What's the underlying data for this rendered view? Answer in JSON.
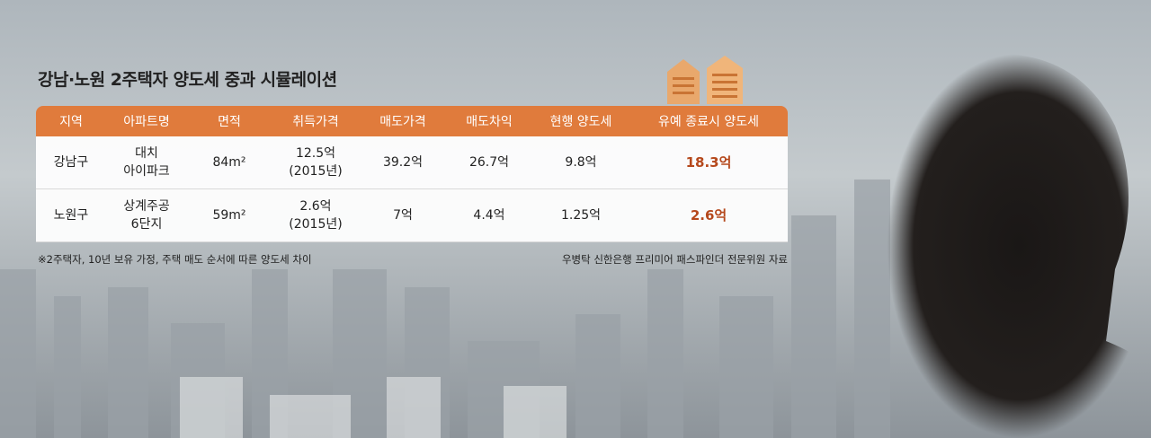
{
  "header": {
    "title": "강남·노원 2주택자 양도세 중과 시뮬레이션"
  },
  "table": {
    "columns": [
      "지역",
      "아파트명",
      "면적",
      "취득가격",
      "매도가격",
      "매도차익",
      "현행 양도세",
      "유예 종료시 양도세"
    ],
    "rows": [
      [
        "강남구",
        "대치\n아이파크",
        "84m²",
        "12.5억\n(2015년)",
        "39.2억",
        "26.7억",
        "9.8억",
        "18.3억"
      ],
      [
        "노원구",
        "상계주공\n6단지",
        "59m²",
        "2.6억\n(2015년)",
        "7억",
        "4.4억",
        "1.25억",
        "2.6억"
      ]
    ]
  },
  "footer": {
    "note": "※2주택자, 10년 보유 가정, 주택 매도 순서에 따른 양도세 차이",
    "source": "우병탁 신한은행 프리미어 패스파인더 전문위원 자료"
  }
}
